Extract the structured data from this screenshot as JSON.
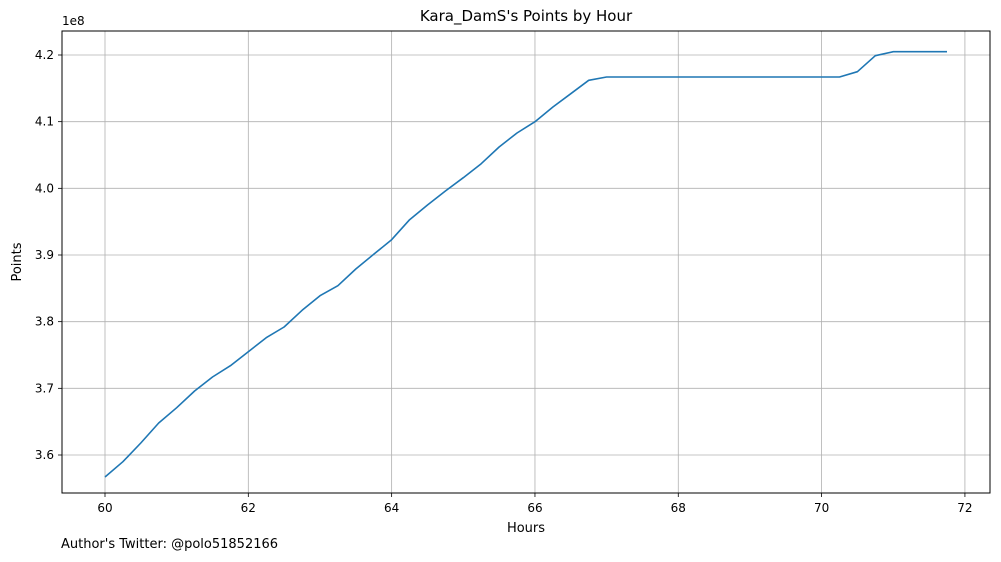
{
  "chart_data": {
    "type": "line",
    "title": "Kara_DamS's Points by Hour",
    "xlabel": "Hours",
    "ylabel": "Points",
    "y_offset_label": "1e8",
    "xlim": [
      59.4,
      72.35
    ],
    "ylim": [
      3.543,
      4.236
    ],
    "x_ticks": [
      60,
      62,
      64,
      66,
      68,
      70,
      72
    ],
    "x_tick_labels": [
      "60",
      "62",
      "64",
      "66",
      "68",
      "70",
      "72"
    ],
    "y_ticks": [
      3.6,
      3.7,
      3.8,
      3.9,
      4.0,
      4.1,
      4.2
    ],
    "y_tick_labels": [
      "3.6",
      "3.7",
      "3.8",
      "3.9",
      "4.0",
      "4.1",
      "4.2"
    ],
    "grid": true,
    "line_color": "#1f77b4",
    "series": [
      {
        "x": [
          60.0,
          60.25,
          60.5,
          60.75,
          61.0,
          61.25,
          61.5,
          61.75,
          62.0,
          62.25,
          62.5,
          62.75,
          63.0,
          63.25,
          63.5,
          63.75,
          64.0,
          64.25,
          64.5,
          64.75,
          65.0,
          65.25,
          65.5,
          65.75,
          66.0,
          66.25,
          66.5,
          66.75,
          67.0,
          67.25,
          67.5,
          67.75,
          68.0,
          68.25,
          68.5,
          68.75,
          69.0,
          69.25,
          69.5,
          69.75,
          70.0,
          70.25,
          70.5,
          70.75,
          71.0,
          71.25,
          71.5,
          71.75
        ],
        "values": [
          3.567,
          3.59,
          3.618,
          3.648,
          3.671,
          3.696,
          3.717,
          3.734,
          3.755,
          3.776,
          3.792,
          3.817,
          3.839,
          3.854,
          3.879,
          3.901,
          3.923,
          3.953,
          3.975,
          3.996,
          4.016,
          4.037,
          4.062,
          4.083,
          4.1,
          4.122,
          4.142,
          4.162,
          4.167,
          4.167,
          4.167,
          4.167,
          4.167,
          4.167,
          4.167,
          4.167,
          4.167,
          4.167,
          4.167,
          4.167,
          4.167,
          4.167,
          4.175,
          4.199,
          4.205,
          4.205,
          4.205,
          4.205
        ]
      }
    ]
  },
  "footer": {
    "attribution": "Author's Twitter: @polo51852166"
  }
}
